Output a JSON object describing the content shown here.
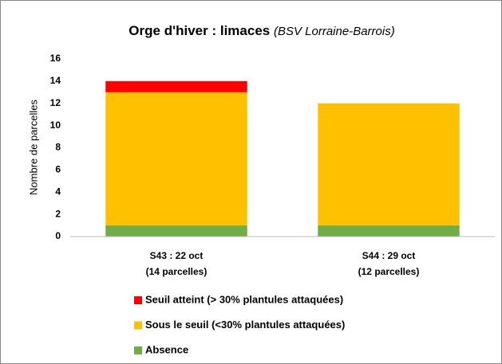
{
  "chart_data": {
    "type": "stacked_bar",
    "title": "Orge d'hiver : limaces",
    "subtitle": "(BSV Lorraine-Barrois)",
    "y_label": "Nombre de parcelles",
    "categories": [
      [
        "S43 : 22 oct",
        "(14 parcelles)"
      ],
      [
        "S44 : 29 oct",
        "(12 parcelles)"
      ]
    ],
    "series": [
      {
        "name": "Absence",
        "color": "#70ad47",
        "values": [
          1,
          1
        ]
      },
      {
        "name": "Sous le seuil (<30% plantules attaquées)",
        "color": "#ffc000",
        "values": [
          12,
          11
        ]
      },
      {
        "name": "Seuil atteint (> 30% plantules attaquées)",
        "color": "#ff0000",
        "values": [
          1,
          0
        ]
      }
    ],
    "ylim": [
      0,
      16
    ],
    "yticks": [
      0,
      2,
      4,
      6,
      8,
      10,
      12,
      14,
      16
    ],
    "grid": false
  }
}
